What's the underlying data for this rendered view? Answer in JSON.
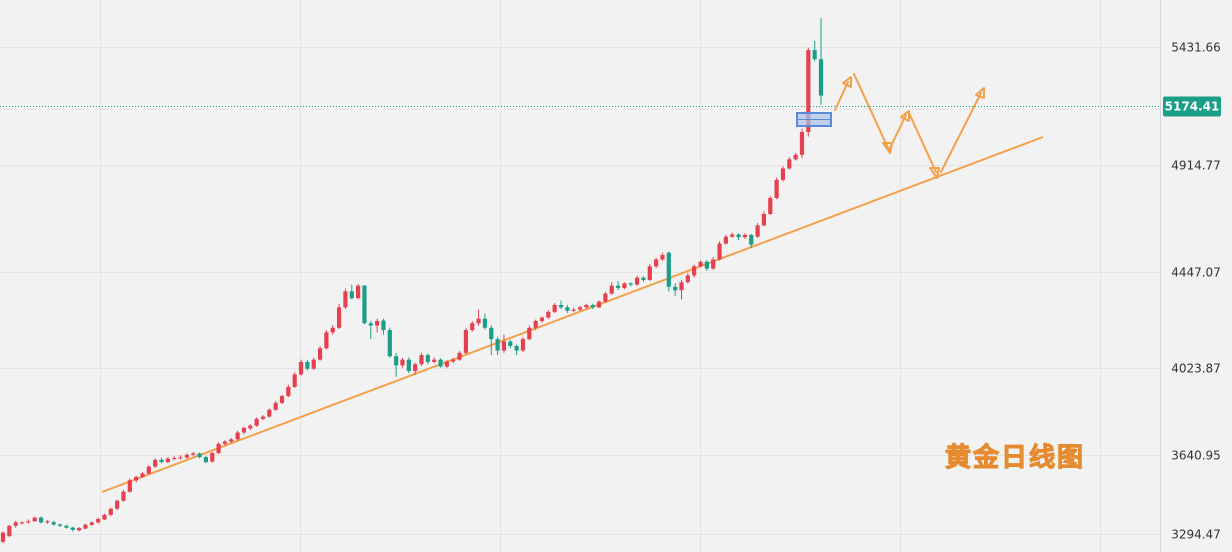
{
  "chart_data": {
    "type": "candlestick",
    "y_axis": {
      "ticks": [
        "3294.47",
        "3640.95",
        "4023.87",
        "4447.07",
        "4914.77",
        "5431.66"
      ],
      "tick_values": [
        3294.47,
        3640.95,
        4023.87,
        4447.07,
        4914.77,
        5431.66
      ],
      "ylim": [
        3215,
        5640
      ]
    },
    "last_price": {
      "value": 5174.41,
      "label": "5174.41"
    },
    "watermark": "黄金日线图",
    "colors": {
      "up": "#e5404f",
      "down": "#1a9e87",
      "trendline": "#f4a04a",
      "price_line": "#1a9e87",
      "projection": "#f4a04a",
      "highlight": "#6a9ad8",
      "background": "#f2f2f2",
      "grid": "#e3e3e3"
    },
    "candles": [
      [
        3260,
        3300,
        3255,
        3305
      ],
      [
        3285,
        3330,
        3280,
        3335
      ],
      [
        3330,
        3345,
        3322,
        3352
      ],
      [
        3345,
        3345,
        3336,
        3350
      ],
      [
        3345,
        3350,
        3340,
        3358
      ],
      [
        3350,
        3366,
        3348,
        3370
      ],
      [
        3366,
        3345,
        3340,
        3372
      ],
      [
        3345,
        3350,
        3338,
        3355
      ],
      [
        3346,
        3336,
        3330,
        3352
      ],
      [
        3336,
        3330,
        3325,
        3340
      ],
      [
        3330,
        3322,
        3318,
        3335
      ],
      [
        3322,
        3312,
        3305,
        3326
      ],
      [
        3310,
        3320,
        3305,
        3325
      ],
      [
        3318,
        3335,
        3315,
        3340
      ],
      [
        3334,
        3345,
        3330,
        3350
      ],
      [
        3345,
        3360,
        3340,
        3366
      ],
      [
        3358,
        3378,
        3355,
        3384
      ],
      [
        3378,
        3405,
        3372,
        3410
      ],
      [
        3405,
        3440,
        3400,
        3446
      ],
      [
        3440,
        3480,
        3436,
        3488
      ],
      [
        3480,
        3530,
        3475,
        3538
      ],
      [
        3530,
        3545,
        3520,
        3550
      ],
      [
        3545,
        3560,
        3540,
        3566
      ],
      [
        3560,
        3590,
        3555,
        3596
      ],
      [
        3590,
        3620,
        3585,
        3626
      ],
      [
        3620,
        3610,
        3605,
        3630
      ],
      [
        3610,
        3625,
        3606,
        3632
      ],
      [
        3625,
        3628,
        3618,
        3636
      ],
      [
        3628,
        3630,
        3622,
        3640
      ],
      [
        3630,
        3642,
        3625,
        3648
      ],
      [
        3642,
        3648,
        3636,
        3655
      ],
      [
        3648,
        3632,
        3626,
        3652
      ],
      [
        3632,
        3610,
        3605,
        3638
      ],
      [
        3612,
        3650,
        3608,
        3656
      ],
      [
        3650,
        3690,
        3645,
        3698
      ],
      [
        3690,
        3700,
        3682,
        3706
      ],
      [
        3700,
        3710,
        3694,
        3716
      ],
      [
        3710,
        3740,
        3705,
        3748
      ],
      [
        3740,
        3760,
        3732,
        3766
      ],
      [
        3758,
        3770,
        3750,
        3776
      ],
      [
        3770,
        3800,
        3765,
        3806
      ],
      [
        3800,
        3810,
        3795,
        3816
      ],
      [
        3810,
        3840,
        3805,
        3846
      ],
      [
        3840,
        3870,
        3835,
        3878
      ],
      [
        3870,
        3900,
        3865,
        3906
      ],
      [
        3900,
        3940,
        3895,
        3950
      ],
      [
        3940,
        3995,
        3935,
        4005
      ],
      [
        3995,
        4050,
        3990,
        4060
      ],
      [
        4050,
        4020,
        4012,
        4058
      ],
      [
        4020,
        4060,
        4015,
        4068
      ],
      [
        4060,
        4110,
        4055,
        4120
      ],
      [
        4110,
        4180,
        4105,
        4190
      ],
      [
        4180,
        4200,
        4170,
        4212
      ],
      [
        4200,
        4290,
        4195,
        4305
      ],
      [
        4290,
        4360,
        4282,
        4372
      ],
      [
        4360,
        4330,
        4325,
        4390
      ],
      [
        4330,
        4385,
        4325,
        4392
      ],
      [
        4385,
        4220,
        4215,
        4388
      ],
      [
        4220,
        4210,
        4150,
        4230
      ],
      [
        4210,
        4230,
        4180,
        4240
      ],
      [
        4232,
        4190,
        4170,
        4240
      ],
      [
        4190,
        4075,
        4068,
        4200
      ],
      [
        4075,
        4035,
        3985,
        4090
      ],
      [
        4035,
        4060,
        4025,
        4068
      ],
      [
        4060,
        4010,
        4000,
        4070
      ],
      [
        4010,
        4040,
        3995,
        4046
      ],
      [
        4040,
        4080,
        4032,
        4090
      ],
      [
        4080,
        4050,
        4040,
        4088
      ],
      [
        4050,
        4060,
        4044,
        4070
      ],
      [
        4060,
        4030,
        4025,
        4066
      ],
      [
        4030,
        4052,
        4022,
        4058
      ],
      [
        4052,
        4060,
        4045,
        4068
      ],
      [
        4060,
        4090,
        4055,
        4098
      ],
      [
        4090,
        4190,
        4085,
        4198
      ],
      [
        4190,
        4220,
        4182,
        4230
      ],
      [
        4220,
        4240,
        4210,
        4280
      ],
      [
        4240,
        4200,
        4192,
        4262
      ],
      [
        4200,
        4150,
        4080,
        4210
      ],
      [
        4150,
        4100,
        4080,
        4160
      ],
      [
        4100,
        4140,
        4090,
        4170
      ],
      [
        4140,
        4120,
        4110,
        4148
      ],
      [
        4120,
        4100,
        4080,
        4126
      ],
      [
        4100,
        4150,
        4094,
        4160
      ],
      [
        4150,
        4200,
        4145,
        4210
      ],
      [
        4200,
        4230,
        4190,
        4236
      ],
      [
        4230,
        4245,
        4222,
        4250
      ],
      [
        4245,
        4270,
        4240,
        4278
      ],
      [
        4270,
        4300,
        4265,
        4308
      ],
      [
        4300,
        4290,
        4282,
        4320
      ],
      [
        4290,
        4275,
        4265,
        4300
      ],
      [
        4275,
        4280,
        4268,
        4288
      ],
      [
        4280,
        4290,
        4274,
        4296
      ],
      [
        4290,
        4300,
        4284,
        4306
      ],
      [
        4300,
        4290,
        4283,
        4306
      ],
      [
        4290,
        4315,
        4286,
        4320
      ],
      [
        4315,
        4350,
        4310,
        4358
      ],
      [
        4350,
        4385,
        4345,
        4400
      ],
      [
        4385,
        4375,
        4365,
        4405
      ],
      [
        4375,
        4395,
        4370,
        4400
      ],
      [
        4395,
        4390,
        4382,
        4400
      ],
      [
        4390,
        4420,
        4385,
        4428
      ],
      [
        4420,
        4410,
        4402,
        4426
      ],
      [
        4410,
        4470,
        4405,
        4480
      ],
      [
        4470,
        4500,
        4462,
        4508
      ],
      [
        4500,
        4520,
        4495,
        4530
      ],
      [
        4530,
        4380,
        4360,
        4535
      ],
      [
        4380,
        4365,
        4340,
        4395
      ],
      [
        4365,
        4400,
        4325,
        4410
      ],
      [
        4400,
        4430,
        4395,
        4440
      ],
      [
        4430,
        4470,
        4420,
        4478
      ],
      [
        4470,
        4490,
        4465,
        4496
      ],
      [
        4490,
        4460,
        4450,
        4498
      ],
      [
        4460,
        4500,
        4455,
        4510
      ],
      [
        4500,
        4570,
        4495,
        4580
      ],
      [
        4570,
        4600,
        4565,
        4608
      ],
      [
        4600,
        4610,
        4595,
        4618
      ],
      [
        4610,
        4598,
        4585,
        4615
      ],
      [
        4598,
        4608,
        4590,
        4615
      ],
      [
        4608,
        4565,
        4550,
        4612
      ],
      [
        4600,
        4650,
        4595,
        4660
      ],
      [
        4650,
        4700,
        4645,
        4712
      ],
      [
        4700,
        4770,
        4695,
        4780
      ],
      [
        4770,
        4850,
        4765,
        4860
      ],
      [
        4850,
        4900,
        4842,
        4910
      ],
      [
        4900,
        4940,
        4895,
        4950
      ],
      [
        4940,
        4960,
        4935,
        4968
      ],
      [
        4960,
        5060,
        4945,
        5075
      ],
      [
        5060,
        5420,
        5040,
        5430
      ],
      [
        5420,
        5380,
        5370,
        5460
      ],
      [
        5380,
        5220,
        5180,
        5560
      ]
    ]
  }
}
